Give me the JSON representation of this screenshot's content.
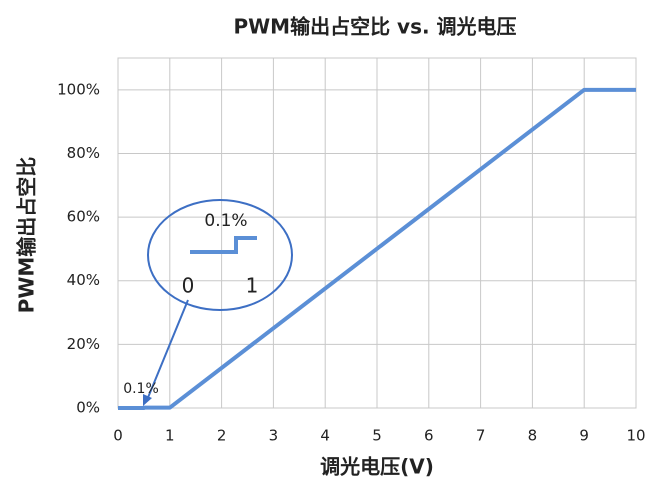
{
  "chart_data": {
    "type": "line",
    "title": "PWM输出占空比 vs. 调光电压",
    "x_label": "调光电压(V)",
    "y_label": "PWM输出占空比",
    "x": [
      0,
      0.5,
      0.5,
      1,
      9,
      10
    ],
    "series": [
      {
        "name": "PWM",
        "color": "#5b8fd6",
        "values": [
          0,
          0,
          0.1,
          0.1,
          100,
          100
        ]
      }
    ],
    "xlim": [
      0,
      10
    ],
    "xticks": [
      0,
      1,
      2,
      3,
      4,
      5,
      6,
      7,
      8,
      9,
      10
    ],
    "ylim": [
      0,
      110
    ],
    "yticks": [
      {
        "value": 0,
        "label": "0%"
      },
      {
        "value": 20,
        "label": "20%"
      },
      {
        "value": 40,
        "label": "40%"
      },
      {
        "value": 60,
        "label": "60%"
      },
      {
        "value": 80,
        "label": "80%"
      },
      {
        "value": 100,
        "label": "100%"
      }
    ],
    "grid": true,
    "annotations": [
      "0.1%",
      "0.1%",
      "0",
      "1"
    ]
  }
}
